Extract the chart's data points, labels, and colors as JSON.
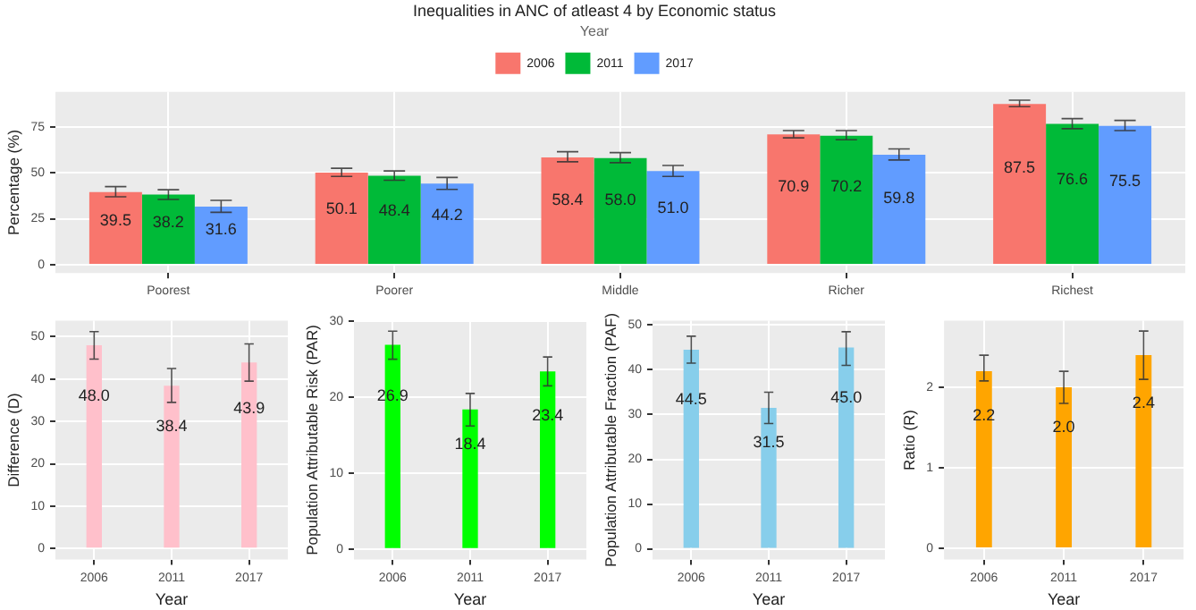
{
  "chart_data": [
    {
      "type": "bar",
      "title": "Inequalities in ANC of atleast 4 by Economic status",
      "ylabel": "Percentage (%)",
      "legend_title": "Year",
      "legend": "top",
      "grid": true,
      "categories": [
        "Poorest",
        "Poorer",
        "Middle",
        "Richer",
        "Richest"
      ],
      "ylim": [
        -4.5,
        94
      ],
      "yticks": [
        0,
        25,
        50,
        75
      ],
      "series": [
        {
          "name": "2006",
          "color": "#f8766d",
          "values": [
            39.5,
            50.1,
            58.4,
            70.9,
            87.5
          ],
          "value_labels": [
            "39.5",
            "50.1",
            "58.4",
            "70.9",
            "87.5"
          ],
          "errors": [
            [
              37,
              42.5
            ],
            [
              48,
              52.5
            ],
            [
              56,
              61.5
            ],
            [
              69,
              73
            ],
            [
              86,
              89.5
            ]
          ]
        },
        {
          "name": "2011",
          "color": "#00ba38",
          "values": [
            38.2,
            48.4,
            58.0,
            70.2,
            76.6
          ],
          "value_labels": [
            "38.2",
            "48.4",
            "58.0",
            "70.2",
            "76.6"
          ],
          "errors": [
            [
              35.5,
              40.8
            ],
            [
              46,
              51
            ],
            [
              55.5,
              61
            ],
            [
              68,
              73
            ],
            [
              74,
              79.5
            ]
          ]
        },
        {
          "name": "2017",
          "color": "#619cff",
          "values": [
            31.6,
            44.2,
            51.0,
            59.8,
            75.5
          ],
          "value_labels": [
            "31.6",
            "44.2",
            "51.0",
            "59.8",
            "75.5"
          ],
          "errors": [
            [
              28.5,
              35
            ],
            [
              41,
              47.5
            ],
            [
              48,
              54
            ],
            [
              57,
              63
            ],
            [
              73,
              78.5
            ]
          ]
        }
      ]
    },
    {
      "type": "bar",
      "xlabel": "Year",
      "ylabel": "Difference (D)",
      "grid": true,
      "categories": [
        "2006",
        "2011",
        "2017"
      ],
      "ylim": [
        -2.6,
        53.8
      ],
      "yticks": [
        0,
        10,
        20,
        30,
        40,
        50
      ],
      "series": [
        {
          "color": "#ffc0cb",
          "values": [
            48.0,
            38.4,
            43.9
          ],
          "value_labels": [
            "48.0",
            "38.4",
            "43.9"
          ],
          "errors": [
            [
              44.7,
              51.2
            ],
            [
              34.5,
              42.5
            ],
            [
              39.5,
              48.3
            ]
          ]
        }
      ]
    },
    {
      "type": "bar",
      "xlabel": "Year",
      "ylabel": "Population Attributable Risk (PAR)",
      "grid": true,
      "categories": [
        "2006",
        "2011",
        "2017"
      ],
      "ylim": [
        -1.4,
        30.1
      ],
      "yticks": [
        0,
        10,
        20,
        30
      ],
      "series": [
        {
          "color": "#00ff00",
          "values": [
            26.9,
            18.4,
            23.4
          ],
          "value_labels": [
            "26.9",
            "18.4",
            "23.4"
          ],
          "errors": [
            [
              25,
              28.7
            ],
            [
              16.2,
              20.5
            ],
            [
              21.5,
              25.3
            ]
          ]
        }
      ]
    },
    {
      "type": "bar",
      "xlabel": "Year",
      "ylabel": "Population Attributable Fraction (PAF)",
      "grid": true,
      "categories": [
        "2006",
        "2011",
        "2017"
      ],
      "ylim": [
        -2.4,
        51
      ],
      "yticks": [
        0,
        10,
        20,
        30,
        40,
        50
      ],
      "series": [
        {
          "color": "#87ceeb",
          "values": [
            44.5,
            31.5,
            45.0
          ],
          "value_labels": [
            "44.5",
            "31.5",
            "45.0"
          ],
          "errors": [
            [
              41.5,
              47.5
            ],
            [
              28,
              35
            ],
            [
              41,
              48.5
            ]
          ]
        }
      ]
    },
    {
      "type": "bar",
      "xlabel": "Year",
      "ylabel": "Ratio (R)",
      "grid": true,
      "categories": [
        "2006",
        "2011",
        "2017"
      ],
      "ylim": [
        -0.14,
        2.83
      ],
      "yticks": [
        0,
        1,
        2
      ],
      "series": [
        {
          "color": "#ffa500",
          "values": [
            2.2,
            2.0,
            2.4
          ],
          "value_labels": [
            "2.2",
            "2.0",
            "2.4"
          ],
          "errors": [
            [
              2.08,
              2.4
            ],
            [
              1.8,
              2.2
            ],
            [
              2.1,
              2.7
            ]
          ]
        }
      ]
    }
  ]
}
